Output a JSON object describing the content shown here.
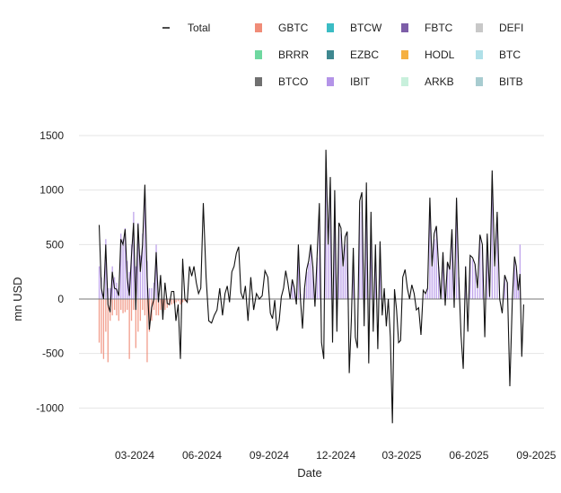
{
  "chart_data": {
    "type": "bar+line",
    "xlabel": "Date",
    "ylabel": "mn USD",
    "ylim": [
      -1200,
      1550
    ],
    "yticks": [
      1500,
      1000,
      500,
      0,
      -500,
      -1000
    ],
    "xticks": [
      "03-2024",
      "06-2024",
      "09-2024",
      "12-2024",
      "03-2025",
      "06-2025",
      "09-2025"
    ],
    "grid": true,
    "legend_position": "top",
    "legend": {
      "line": {
        "name": "Total",
        "color": "#111111"
      },
      "bars": [
        {
          "name": "GBTC",
          "color": "#f08c78"
        },
        {
          "name": "BTCW",
          "color": "#3bbcc4"
        },
        {
          "name": "FBTC",
          "color": "#7d5ea8"
        },
        {
          "name": "DEFI",
          "color": "#c8c8c8"
        },
        {
          "name": "BRRR",
          "color": "#6fd8a0"
        },
        {
          "name": "EZBC",
          "color": "#3f8890"
        },
        {
          "name": "HODL",
          "color": "#f5b041"
        },
        {
          "name": "BTC",
          "color": "#b0e0e8"
        },
        {
          "name": "BTCO",
          "color": "#707070"
        },
        {
          "name": "IBIT",
          "color": "#b494e8"
        },
        {
          "name": "ARKB",
          "color": "#c8f0dc"
        },
        {
          "name": "BITB",
          "color": "#a8ccd0"
        }
      ]
    },
    "total_daily_by_month": {
      "2024-01": [
        680,
        100,
        0,
        500,
        -50,
        -120,
        250
      ],
      "2024-02": [
        100,
        90,
        30,
        550,
        500,
        640,
        200,
        30,
        400,
        700
      ],
      "2024-03": [
        -100,
        690,
        250,
        500,
        1050,
        200,
        -280,
        -80,
        0,
        430
      ],
      "2024-04": [
        -30,
        220,
        -190,
        150,
        -40,
        -50,
        70,
        70,
        -200,
        -50
      ],
      "2024-05": [
        -550,
        370,
        0,
        -30,
        300,
        210,
        300,
        150,
        50,
        100
      ],
      "2024-06": [
        880,
        200,
        -200,
        -220,
        -150,
        -100,
        100,
        -150
      ],
      "2024-07": [
        50,
        120,
        -30,
        250,
        300,
        420,
        480,
        60,
        0,
        120
      ],
      "2024-08": [
        -200,
        200,
        -100,
        50,
        0,
        30,
        260,
        200
      ],
      "2024-09": [
        -130,
        -180,
        -10,
        -290,
        -200,
        20,
        100,
        260,
        150,
        0
      ],
      "2024-10": [
        180,
        100,
        -50,
        500,
        0,
        -270,
        100,
        270,
        350,
        500,
        300
      ],
      "2024-11": [
        -70,
        400,
        880,
        -400,
        -550,
        1370,
        500,
        1120,
        -400,
        1000
      ],
      "2024-12": [
        -300,
        700,
        650,
        300,
        570,
        620,
        -680,
        -200,
        470,
        -350,
        -450
      ],
      "2025-01": [
        900,
        980,
        -250,
        1070,
        -590,
        800,
        -300,
        500,
        -460,
        530
      ],
      "2025-02": [
        -150,
        100,
        -250,
        0,
        -350,
        -1140,
        90,
        -100,
        -400,
        -380
      ],
      "2025-03": [
        200,
        270,
        100,
        0,
        130,
        50,
        -100,
        -80,
        -330,
        80
      ],
      "2025-04": [
        50,
        100,
        930,
        300,
        600,
        670,
        300,
        0,
        430,
        -60
      ],
      "2025-05": [
        340,
        270,
        640,
        -80,
        930,
        200,
        -330,
        -640,
        300,
        -300
      ],
      "2025-06": [
        400,
        380,
        320,
        100,
        590,
        500,
        -350,
        600,
        20
      ],
      "2025-07": [
        1180,
        300,
        800,
        0,
        -130,
        220,
        150,
        -800,
        0
      ],
      "2025-08": [
        390,
        300,
        80,
        230,
        -530,
        -50
      ]
    },
    "components_daily_by_month": {
      "GBTC": {
        "2024-01": [
          -400,
          -500,
          -550,
          -300,
          -580,
          -200,
          -150
        ],
        "2024-02": [
          -100,
          -150,
          -200,
          -100,
          -130,
          -120,
          -100,
          -550,
          -200,
          -100
        ],
        "2024-03": [
          -450,
          -300,
          -200,
          -100,
          -150,
          -580,
          -300,
          -200,
          -100,
          -150
        ],
        "2024-04": [
          -150,
          -100,
          -120,
          -100,
          -80,
          -60,
          -50,
          -40,
          -30,
          -20
        ],
        "2024-05": [
          -50,
          -30,
          -20,
          -20,
          -10,
          0,
          0,
          0,
          0,
          0
        ]
      },
      "IBIT": {
        "2024-01": [
          300,
          200,
          50,
          550,
          100,
          100,
          300
        ],
        "2024-02": [
          200,
          150,
          100,
          600,
          550,
          650,
          350,
          250,
          500,
          800
        ],
        "2024-03": [
          300,
          700,
          400,
          600,
          1000,
          350,
          100,
          100,
          150,
          500
        ],
        "2024-10": [
          150,
          100,
          0,
          450,
          50,
          0,
          100,
          250,
          330,
          450,
          300
        ],
        "2024-11": [
          0,
          380,
          800,
          0,
          0,
          1100,
          500,
          1000,
          0,
          900
        ],
        "2024-12": [
          0,
          650,
          600,
          300,
          500,
          600,
          0,
          0,
          400,
          0,
          0
        ],
        "2025-01": [
          800,
          900,
          0,
          950,
          0,
          700,
          0,
          450,
          0,
          480
        ],
        "2025-04": [
          50,
          100,
          850,
          300,
          550,
          650,
          300,
          0,
          400,
          0
        ],
        "2025-05": [
          330,
          270,
          600,
          0,
          900,
          200,
          0,
          0,
          300,
          0
        ],
        "2025-06": [
          380,
          360,
          320,
          100,
          550,
          480,
          0,
          580,
          20
        ],
        "2025-07": [
          1100,
          300,
          750,
          0,
          0,
          200,
          150,
          0,
          0
        ],
        "2025-08": [
          350,
          280,
          80,
          500,
          0,
          0
        ]
      }
    }
  }
}
